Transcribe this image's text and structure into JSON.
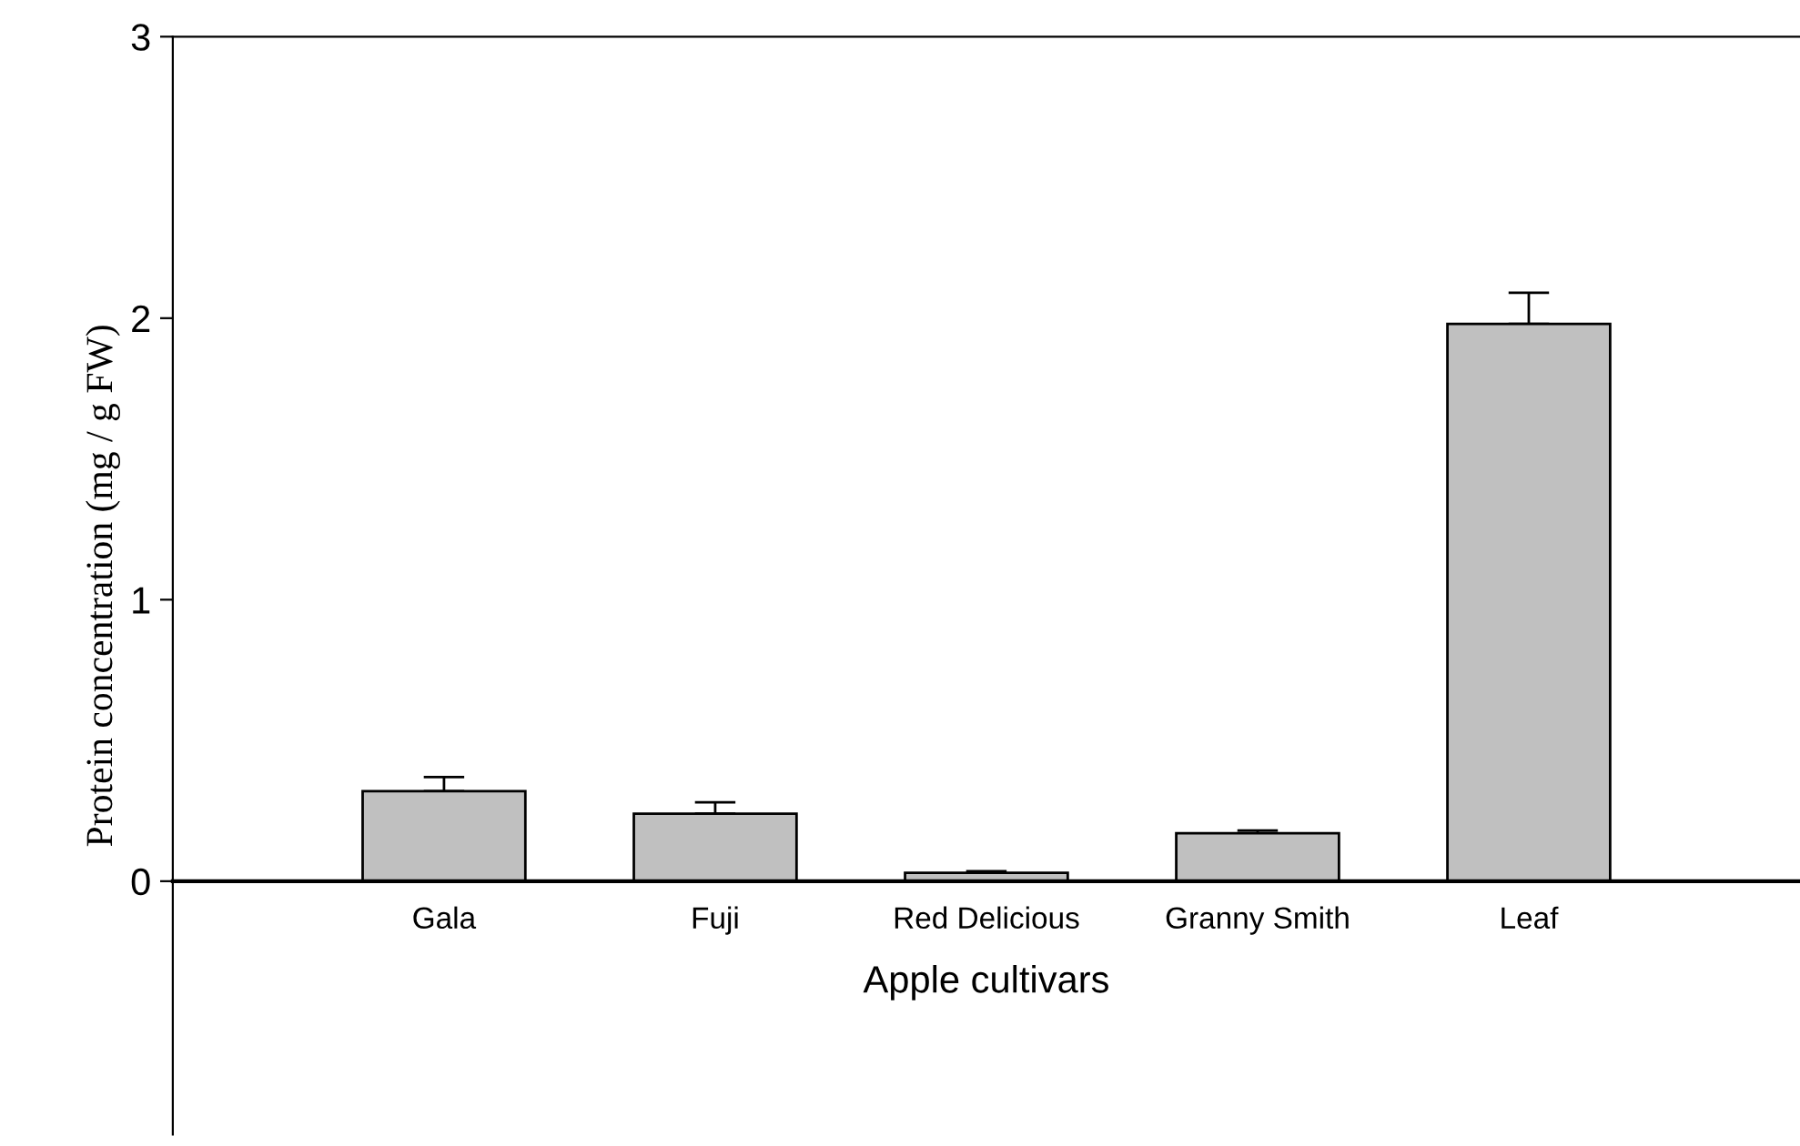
{
  "chart_data": {
    "type": "bar",
    "xlabel": "Apple cultivars",
    "ylabel": "Protein concentration (mg / g FW)",
    "categories": [
      "Gala",
      "Fuji",
      "Red Delicious",
      "Granny Smith",
      "Leaf"
    ],
    "values": [
      0.32,
      0.24,
      0.03,
      0.17,
      1.98
    ],
    "errors": [
      [
        0.32,
        0.37
      ],
      [
        0.24,
        0.28
      ],
      [
        0.03,
        0.035
      ],
      [
        0.17,
        0.18
      ],
      [
        1.98,
        2.09
      ]
    ],
    "color": "#c0c0c0",
    "ylim": [
      -0.9,
      3
    ],
    "yticks": [
      0,
      1,
      2,
      3
    ],
    "grid": false,
    "legend": false
  }
}
